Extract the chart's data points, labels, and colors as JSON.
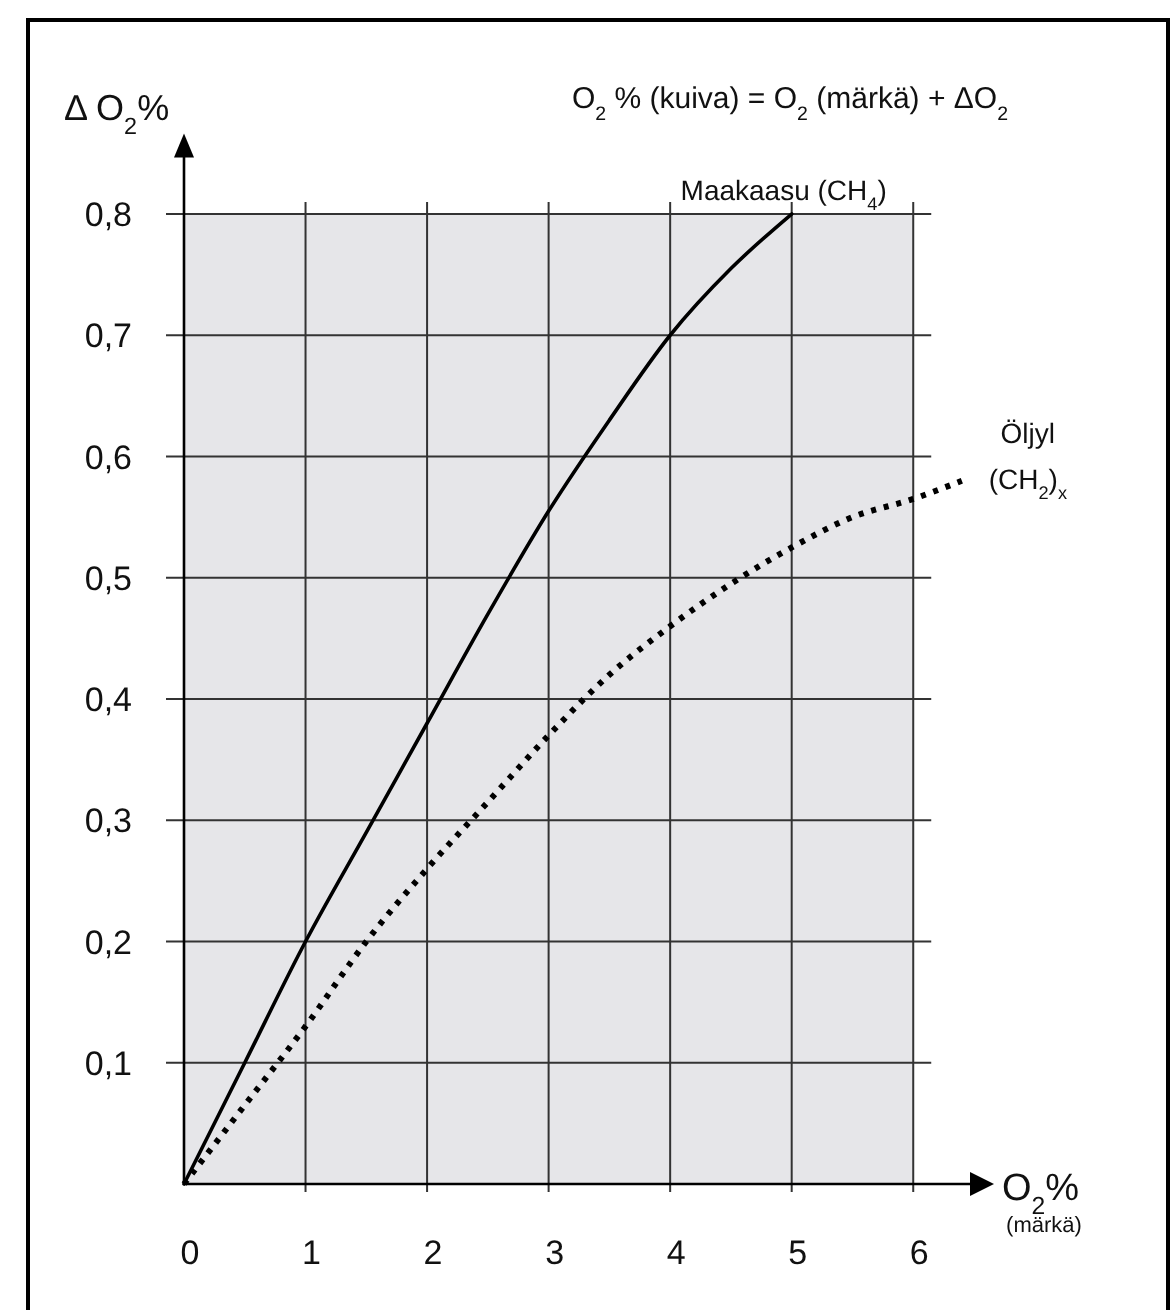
{
  "chart_data": {
    "type": "line",
    "title": "O$_{2}$ % (kuiva) = O$_{2}$ (märkä) + ΔO$_{2}$",
    "xlabel": "O$_{2}$%\n(märkä)",
    "ylabel": "Δ O$_{2}$%",
    "xlim": [
      0,
      6.5
    ],
    "ylim": [
      0,
      0.85
    ],
    "xticks": [
      0,
      1,
      2,
      3,
      4,
      5,
      6
    ],
    "yticks": [
      {
        "value": 0.1,
        "label": "0,1"
      },
      {
        "value": 0.2,
        "label": "0,2"
      },
      {
        "value": 0.3,
        "label": "0,3"
      },
      {
        "value": 0.4,
        "label": "0,4"
      },
      {
        "value": 0.5,
        "label": "0,5"
      },
      {
        "value": 0.6,
        "label": "0,6"
      },
      {
        "value": 0.7,
        "label": "0,7"
      },
      {
        "value": 0.8,
        "label": "0,8"
      }
    ],
    "grid": true,
    "series": [
      {
        "name": "Maakaasu (CH$_{4}$)",
        "color": "#000000",
        "line_style": "solid",
        "x": [
          0,
          0.5,
          1,
          1.5,
          2,
          2.5,
          3,
          3.5,
          4,
          4.5,
          5
        ],
        "values": [
          0,
          0.1,
          0.2,
          0.29,
          0.38,
          0.47,
          0.555,
          0.63,
          0.7,
          0.755,
          0.8
        ]
      },
      {
        "name": "Öljyl (CH$_{2}$)$_{x}$",
        "color": "#000000",
        "line_style": "dotted",
        "x": [
          0,
          0.5,
          1,
          1.5,
          2,
          2.5,
          3,
          3.5,
          4,
          4.5,
          5,
          5.5,
          6,
          6.4
        ],
        "values": [
          0,
          0.065,
          0.13,
          0.2,
          0.26,
          0.315,
          0.37,
          0.42,
          0.46,
          0.495,
          0.525,
          0.55,
          0.565,
          0.58
        ]
      }
    ]
  }
}
